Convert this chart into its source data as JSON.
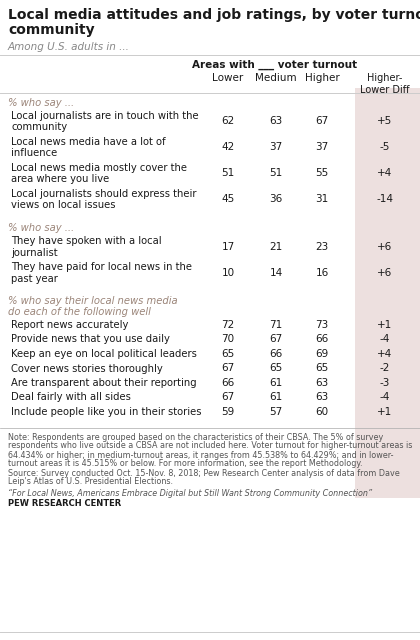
{
  "title": "Local media attitudes and job ratings, by voter turnout in\ncommunity",
  "subtitle": "Among U.S. adults in ...",
  "header_main": "Areas with ___ voter turnout",
  "sections": [
    {
      "section_label": "% who say ...",
      "rows": [
        {
          "label": "Local journalists are in touch with the\ncommunity",
          "values": [
            62,
            63,
            67
          ],
          "diff": "+5"
        },
        {
          "label": "Local news media have a lot of\ninfluence",
          "values": [
            42,
            37,
            37
          ],
          "diff": "-5"
        },
        {
          "label": "Local news media mostly cover the\narea where you live",
          "values": [
            51,
            51,
            55
          ],
          "diff": "+4"
        },
        {
          "label": "Local journalists should express their\nviews on local issues",
          "values": [
            45,
            36,
            31
          ],
          "diff": "-14"
        }
      ]
    },
    {
      "section_label": "% who say ...",
      "rows": [
        {
          "label": "They have spoken with a local\njournalist",
          "values": [
            17,
            21,
            23
          ],
          "diff": "+6"
        },
        {
          "label": "They have paid for local news in the\npast year",
          "values": [
            10,
            14,
            16
          ],
          "diff": "+6"
        }
      ]
    },
    {
      "section_label": "% who say their local news media\ndo each of the following well",
      "rows": [
        {
          "label": "Report news accurately",
          "values": [
            72,
            71,
            73
          ],
          "diff": "+1"
        },
        {
          "label": "Provide news that you use daily",
          "values": [
            70,
            67,
            66
          ],
          "diff": "-4"
        },
        {
          "label": "Keep an eye on local political leaders",
          "values": [
            65,
            66,
            69
          ],
          "diff": "+4"
        },
        {
          "label": "Cover news stories thoroughly",
          "values": [
            67,
            65,
            65
          ],
          "diff": "-2"
        },
        {
          "label": "Are transparent about their reporting",
          "values": [
            66,
            61,
            63
          ],
          "diff": "-3"
        },
        {
          "label": "Deal fairly with all sides",
          "values": [
            67,
            61,
            63
          ],
          "diff": "-4"
        },
        {
          "label": "Include people like you in their stories",
          "values": [
            59,
            57,
            60
          ],
          "diff": "+1"
        }
      ]
    }
  ],
  "note1": "Note: Respondents are grouped based on the characteristics of their CBSA. The 5% of survey",
  "note2": "respondents who live outside a CBSA are not included here. Voter turnout for higher-turnout areas is",
  "note3": "64.434% or higher; in medium-turnout areas, it ranges from 45.538% to 64.429%; and in lower-",
  "note4": "turnout areas it is 45.515% or below. For more information, see the report Methodology.",
  "note5": "Source: Survey conducted Oct. 15-Nov. 8, 2018; Pew Research Center analysis of data from Dave",
  "note6": "Leip's Atlas of U.S. Presidential Elections.",
  "source_line": "“For Local News, Americans Embrace Digital but Still Want Strong Community Connection”",
  "pew_label": "PEW RESEARCH CENTER",
  "bg_color": "#ffffff",
  "diff_col_bg": "#ede0df",
  "text_color": "#1a1a1a",
  "section_color": "#9b8579",
  "note_color": "#555555"
}
